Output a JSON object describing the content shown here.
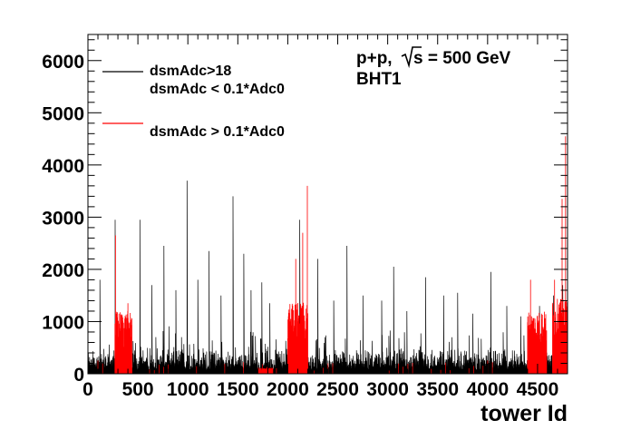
{
  "chart_data": {
    "type": "line",
    "xlabel": "tower Id",
    "ylabel": "",
    "xlim": [
      0,
      4800
    ],
    "ylim": [
      0,
      6500
    ],
    "x_ticks": [
      0,
      500,
      1000,
      1500,
      2000,
      2500,
      3000,
      3500,
      4000,
      4500
    ],
    "x_tick_labels": [
      "0",
      "500",
      "1000",
      "1500",
      "2000",
      "2500",
      "3000",
      "3500",
      "4000",
      "4500"
    ],
    "y_ticks": [
      0,
      1000,
      2000,
      3000,
      4000,
      5000,
      6000
    ],
    "y_tick_labels": [
      "0",
      "1000",
      "2000",
      "3000",
      "4000",
      "5000",
      "6000"
    ],
    "annotation_lines": [
      "p+p,",
      "s = 500 GeV",
      "BHT1"
    ],
    "legend": [
      {
        "label_lines": [
          "dsmAdc>18",
          "dsmAdc < 0.1*Adc0"
        ],
        "color": "#000000"
      },
      {
        "label_lines": [
          "dsmAdc > 0.1*Adc0"
        ],
        "color": "#ff0000"
      }
    ],
    "series": [
      {
        "color": "#000000",
        "baseline_range": [
          150,
          450
        ],
        "peaks": [
          {
            "x": 120,
            "y": 1800
          },
          {
            "x": 270,
            "y": 2950
          },
          {
            "x": 520,
            "y": 2950
          },
          {
            "x": 640,
            "y": 1700
          },
          {
            "x": 760,
            "y": 2450
          },
          {
            "x": 880,
            "y": 1600
          },
          {
            "x": 990,
            "y": 3700
          },
          {
            "x": 1100,
            "y": 1800
          },
          {
            "x": 1210,
            "y": 2350
          },
          {
            "x": 1330,
            "y": 1500
          },
          {
            "x": 1450,
            "y": 3400
          },
          {
            "x": 1560,
            "y": 2300
          },
          {
            "x": 1630,
            "y": 1600
          },
          {
            "x": 1740,
            "y": 1750
          },
          {
            "x": 1820,
            "y": 1350
          },
          {
            "x": 2120,
            "y": 2950
          },
          {
            "x": 2300,
            "y": 2200
          },
          {
            "x": 2460,
            "y": 1400
          },
          {
            "x": 2590,
            "y": 2450
          },
          {
            "x": 2750,
            "y": 1500
          },
          {
            "x": 2940,
            "y": 1400
          },
          {
            "x": 3060,
            "y": 2050
          },
          {
            "x": 3190,
            "y": 1200
          },
          {
            "x": 3380,
            "y": 1850
          },
          {
            "x": 3560,
            "y": 1500
          },
          {
            "x": 3700,
            "y": 1550
          },
          {
            "x": 3850,
            "y": 1150
          },
          {
            "x": 4030,
            "y": 1950
          },
          {
            "x": 4190,
            "y": 1300
          },
          {
            "x": 4330,
            "y": 1100
          },
          {
            "x": 4520,
            "y": 1300
          },
          {
            "x": 4660,
            "y": 1500
          },
          {
            "x": 4750,
            "y": 1700
          }
        ]
      },
      {
        "color": "#ff0000",
        "blocks": [
          {
            "x_range": [
              270,
              440
            ],
            "level": 1050,
            "peaks": [
              {
                "x": 275,
                "y": 2650
              },
              {
                "x": 400,
                "y": 1350
              }
            ]
          },
          {
            "x_range": [
              1700,
              1850
            ],
            "level": 100,
            "peaks": []
          },
          {
            "x_range": [
              2000,
              2200
            ],
            "level": 1200,
            "peaks": [
              {
                "x": 2080,
                "y": 2200
              },
              {
                "x": 2150,
                "y": 2700
              },
              {
                "x": 2195,
                "y": 3600
              }
            ]
          },
          {
            "x_range": [
              4400,
              4590
            ],
            "level": 1050,
            "peaks": [
              {
                "x": 4430,
                "y": 1800
              },
              {
                "x": 4540,
                "y": 1150
              }
            ]
          },
          {
            "x_range": [
              4650,
              4800
            ],
            "level": 1250,
            "peaks": [
              {
                "x": 4670,
                "y": 1800
              },
              {
                "x": 4745,
                "y": 3350
              },
              {
                "x": 4780,
                "y": 4550
              }
            ]
          }
        ]
      }
    ]
  }
}
